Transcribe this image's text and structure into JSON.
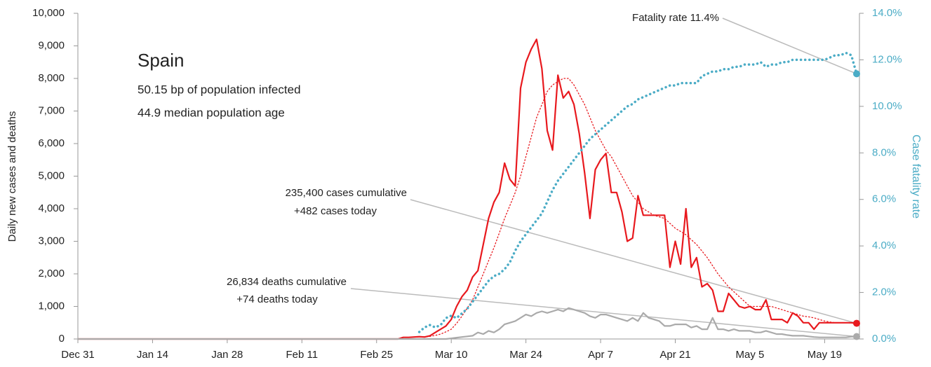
{
  "chart_data": {
    "type": "line",
    "title": "Spain",
    "subtitle": [
      "50.15 bp of population infected",
      "44.9 median population age"
    ],
    "y_label": "Daily new cases and deaths",
    "y2_label": "Case fatality rate",
    "annotations": {
      "cases": [
        "235,400 cases cumulative",
        "+482 cases today"
      ],
      "deaths": [
        "26,834 deaths cumulative",
        "+74 deaths today"
      ],
      "fatality": "Fatality rate 11.4%"
    },
    "x": [
      "Dec 31",
      "Jan 1",
      "Jan 2",
      "Jan 3",
      "Jan 4",
      "Jan 5",
      "Jan 6",
      "Jan 7",
      "Jan 8",
      "Jan 9",
      "Jan 10",
      "Jan 11",
      "Jan 12",
      "Jan 13",
      "Jan 14",
      "Jan 15",
      "Jan 16",
      "Jan 17",
      "Jan 18",
      "Jan 19",
      "Jan 20",
      "Jan 21",
      "Jan 22",
      "Jan 23",
      "Jan 24",
      "Jan 25",
      "Jan 26",
      "Jan 27",
      "Jan 28",
      "Jan 29",
      "Jan 30",
      "Jan 31",
      "Feb 1",
      "Feb 2",
      "Feb 3",
      "Feb 4",
      "Feb 5",
      "Feb 6",
      "Feb 7",
      "Feb 8",
      "Feb 9",
      "Feb 10",
      "Feb 11",
      "Feb 12",
      "Feb 13",
      "Feb 14",
      "Feb 15",
      "Feb 16",
      "Feb 17",
      "Feb 18",
      "Feb 19",
      "Feb 20",
      "Feb 21",
      "Feb 22",
      "Feb 23",
      "Feb 24",
      "Feb 25",
      "Feb 26",
      "Feb 27",
      "Feb 28",
      "Feb 29",
      "Mar 1",
      "Mar 2",
      "Mar 3",
      "Mar 4",
      "Mar 5",
      "Mar 6",
      "Mar 7",
      "Mar 8",
      "Mar 9",
      "Mar 10",
      "Mar 11",
      "Mar 12",
      "Mar 13",
      "Mar 14",
      "Mar 15",
      "Mar 16",
      "Mar 17",
      "Mar 18",
      "Mar 19",
      "Mar 20",
      "Mar 21",
      "Mar 22",
      "Mar 23",
      "Mar 24",
      "Mar 25",
      "Mar 26",
      "Mar 27",
      "Mar 28",
      "Mar 29",
      "Mar 30",
      "Mar 31",
      "Apr 1",
      "Apr 2",
      "Apr 3",
      "Apr 4",
      "Apr 5",
      "Apr 6",
      "Apr 7",
      "Apr 8",
      "Apr 9",
      "Apr 10",
      "Apr 11",
      "Apr 12",
      "Apr 13",
      "Apr 14",
      "Apr 15",
      "Apr 16",
      "Apr 17",
      "Apr 18",
      "Apr 19",
      "Apr 20",
      "Apr 21",
      "Apr 22",
      "Apr 23",
      "Apr 24",
      "Apr 25",
      "Apr 26",
      "Apr 27",
      "Apr 28",
      "Apr 29",
      "Apr 30",
      "May 1",
      "May 2",
      "May 3",
      "May 4",
      "May 5",
      "May 6",
      "May 7",
      "May 8",
      "May 9",
      "May 10",
      "May 11",
      "May 12",
      "May 13",
      "May 14",
      "May 15",
      "May 16",
      "May 17",
      "May 18",
      "May 19",
      "May 20",
      "May 21",
      "May 22",
      "May 23",
      "May 24",
      "May 25"
    ],
    "xticks": [
      "Dec 31",
      "Jan 14",
      "Jan 28",
      "Feb 11",
      "Feb 25",
      "Mar 10",
      "Mar 24",
      "Apr 7",
      "Apr 21",
      "May 5",
      "May 19"
    ],
    "ylim": [
      0,
      10000
    ],
    "yticks": [
      0,
      {
        "value": 1000,
        "label": "1,000"
      },
      {
        "value": 2000,
        "label": "2,000"
      },
      {
        "value": 3000,
        "label": "3,000"
      },
      {
        "value": 4000,
        "label": "4,000"
      },
      {
        "value": 5000,
        "label": "5,000"
      },
      {
        "value": 6000,
        "label": "6,000"
      },
      {
        "value": 7000,
        "label": "7,000"
      },
      {
        "value": 8000,
        "label": "8,000"
      },
      {
        "value": 9000,
        "label": "9,000"
      },
      {
        "value": 10000,
        "label": "10,000"
      }
    ],
    "y2lim": [
      0,
      14
    ],
    "y2ticks": [
      {
        "value": 0,
        "label": "0.0%"
      },
      {
        "value": 2,
        "label": "2.0%"
      },
      {
        "value": 4,
        "label": "4.0%"
      },
      {
        "value": 6,
        "label": "6.0%"
      },
      {
        "value": 8,
        "label": "8.0%"
      },
      {
        "value": 10,
        "label": "10.0%"
      },
      {
        "value": 12,
        "label": "12.0%"
      },
      {
        "value": 14,
        "label": "14.0%"
      }
    ],
    "series": [
      {
        "color": "#e8191e",
        "dash": "solid",
        "end_marker": true,
        "values": [
          0,
          0,
          0,
          0,
          0,
          0,
          0,
          0,
          0,
          0,
          0,
          0,
          0,
          0,
          0,
          0,
          0,
          0,
          0,
          0,
          0,
          0,
          0,
          0,
          0,
          0,
          0,
          0,
          0,
          0,
          0,
          0,
          0,
          0,
          0,
          0,
          0,
          0,
          0,
          0,
          0,
          0,
          0,
          0,
          0,
          0,
          0,
          0,
          0,
          0,
          0,
          0,
          0,
          0,
          0,
          0,
          0,
          0,
          0,
          0,
          0,
          50,
          50,
          60,
          70,
          60,
          100,
          200,
          300,
          400,
          600,
          1000,
          1300,
          1500,
          1900,
          2100,
          2900,
          3700,
          4200,
          4500,
          5400,
          4900,
          4700,
          7700,
          8500,
          8900,
          9200,
          8300,
          6400,
          5800,
          8100,
          7400,
          7600,
          7200,
          6300,
          5100,
          3700,
          5200,
          5500,
          5700,
          4500,
          4500,
          3900,
          3000,
          3100,
          4400,
          3800,
          3800,
          3800,
          3800,
          3800,
          2200,
          3000,
          2300,
          4000,
          2200,
          2500,
          1600,
          1700,
          1500,
          850,
          850,
          1400,
          1200,
          1000,
          950,
          1000,
          900,
          900,
          1200,
          600,
          600,
          600,
          500,
          800,
          700,
          500,
          500,
          300,
          500,
          500,
          500,
          500,
          500,
          500,
          500,
          482
        ]
      },
      {
        "color": "#e8191e",
        "dash": "dotted",
        "values": [
          null,
          null,
          null,
          null,
          null,
          null,
          null,
          null,
          null,
          null,
          null,
          null,
          null,
          null,
          null,
          null,
          null,
          null,
          null,
          null,
          null,
          null,
          null,
          null,
          null,
          null,
          null,
          null,
          null,
          null,
          null,
          null,
          null,
          null,
          null,
          null,
          null,
          null,
          null,
          null,
          null,
          null,
          null,
          null,
          null,
          null,
          null,
          null,
          null,
          null,
          null,
          null,
          null,
          null,
          null,
          null,
          null,
          null,
          null,
          null,
          null,
          null,
          null,
          60,
          60,
          70,
          80,
          110,
          150,
          220,
          300,
          480,
          700,
          950,
          1200,
          1600,
          2000,
          2400,
          2800,
          3250,
          3700,
          4100,
          4500,
          5000,
          5600,
          6200,
          6800,
          7200,
          7600,
          7800,
          7900,
          8000,
          8000,
          7800,
          7500,
          7200,
          6800,
          6400,
          6100,
          5800,
          5600,
          5300,
          5000,
          4700,
          4400,
          4200,
          4000,
          3900,
          3800,
          3750,
          3700,
          3550,
          3400,
          3300,
          3200,
          3050,
          2900,
          2700,
          2500,
          2250,
          2000,
          1800,
          1600,
          1450,
          1300,
          1150,
          1000,
          1000,
          1000,
          1000,
          1000,
          950,
          900,
          850,
          800,
          750,
          700,
          680,
          650,
          600,
          550,
          520,
          500,
          500,
          500,
          490,
          480
        ]
      },
      {
        "color": "#aaaaaa",
        "dash": "solid",
        "end_marker": true,
        "values": [
          0,
          0,
          0,
          0,
          0,
          0,
          0,
          0,
          0,
          0,
          0,
          0,
          0,
          0,
          0,
          0,
          0,
          0,
          0,
          0,
          0,
          0,
          0,
          0,
          0,
          0,
          0,
          0,
          0,
          0,
          0,
          0,
          0,
          0,
          0,
          0,
          0,
          0,
          0,
          0,
          0,
          0,
          0,
          0,
          0,
          0,
          0,
          0,
          0,
          0,
          0,
          0,
          0,
          0,
          0,
          0,
          0,
          0,
          0,
          0,
          0,
          0,
          0,
          0,
          0,
          0,
          0,
          0,
          0,
          0,
          20,
          40,
          60,
          80,
          100,
          200,
          150,
          250,
          200,
          300,
          450,
          500,
          550,
          650,
          750,
          700,
          800,
          850,
          800,
          850,
          900,
          850,
          950,
          900,
          850,
          800,
          700,
          650,
          750,
          750,
          700,
          650,
          600,
          550,
          650,
          550,
          800,
          650,
          600,
          550,
          400,
          400,
          450,
          450,
          450,
          350,
          400,
          300,
          300,
          650,
          300,
          300,
          250,
          300,
          250,
          250,
          250,
          200,
          200,
          250,
          200,
          150,
          150,
          120,
          100,
          100,
          100,
          80,
          60,
          50,
          50,
          50,
          50,
          50,
          50,
          74,
          74
        ]
      },
      {
        "color": "#4bacc6",
        "dash": "dotted",
        "axis": "y2",
        "end_marker": true,
        "values": [
          null,
          null,
          null,
          null,
          null,
          null,
          null,
          null,
          null,
          null,
          null,
          null,
          null,
          null,
          null,
          null,
          null,
          null,
          null,
          null,
          null,
          null,
          null,
          null,
          null,
          null,
          null,
          null,
          null,
          null,
          null,
          null,
          null,
          null,
          null,
          null,
          null,
          null,
          null,
          null,
          null,
          null,
          null,
          null,
          null,
          null,
          null,
          null,
          null,
          null,
          null,
          null,
          null,
          null,
          null,
          null,
          null,
          null,
          null,
          null,
          null,
          null,
          null,
          null,
          0.3,
          0.5,
          0.6,
          0.5,
          0.6,
          0.9,
          1.0,
          0.9,
          1.1,
          1.3,
          1.6,
          1.9,
          2.2,
          2.5,
          2.7,
          2.8,
          3.0,
          3.3,
          3.8,
          4.2,
          4.5,
          4.8,
          5.1,
          5.4,
          5.9,
          6.4,
          6.8,
          7.1,
          7.4,
          7.7,
          8.0,
          8.3,
          8.6,
          8.8,
          9.0,
          9.2,
          9.4,
          9.6,
          9.8,
          10.0,
          10.1,
          10.3,
          10.4,
          10.5,
          10.6,
          10.7,
          10.8,
          10.9,
          10.9,
          11.0,
          11.0,
          11.0,
          11.0,
          11.3,
          11.4,
          11.5,
          11.5,
          11.6,
          11.6,
          11.7,
          11.7,
          11.8,
          11.8,
          11.8,
          11.9,
          11.7,
          11.8,
          11.8,
          11.9,
          11.9,
          12.0,
          12.0,
          12.0,
          12.0,
          12.0,
          12.0,
          12.0,
          12.1,
          12.2,
          12.2,
          12.3,
          12.2,
          11.4
        ]
      }
    ]
  }
}
